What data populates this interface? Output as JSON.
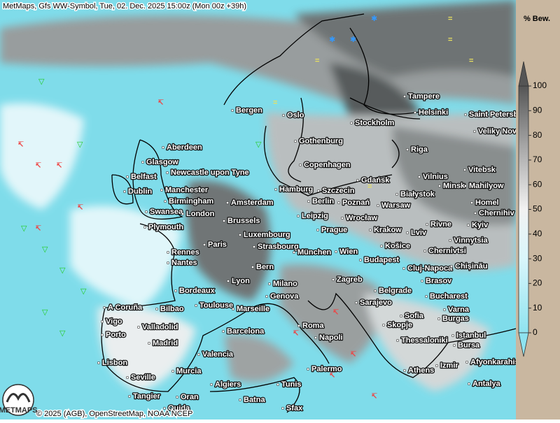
{
  "header": {
    "title": "MetMaps, Gfs WW-Symbol, Tue, 02. Dec. 2025 15:00z (Mon 00z +39h)"
  },
  "footer": {
    "copyright": "© 2025 (AGB), OpenStreetMap, NOAA NCEP"
  },
  "logo": {
    "text": "METMAPS"
  },
  "legend": {
    "title": "% Bew.",
    "lim": [
      0,
      100
    ],
    "ticks": [
      0,
      10,
      20,
      30,
      40,
      50,
      60,
      70,
      80,
      90,
      100
    ]
  },
  "cities": [
    "Tampere",
    "Helsinki",
    "Saint Petersburg",
    "Bergen",
    "Oslo",
    "Stockholm",
    "Veliky Novgorod",
    "Gothenburg",
    "Aberdeen",
    "Riga",
    "Glasgow",
    "Copenhagen",
    "Newcastle upon Tyne",
    "Vitebsk",
    "Belfast",
    "Gdańsk",
    "Vilnius",
    "Dublin",
    "Manchester",
    "Hamburg",
    "Szczecin",
    "Białystok",
    "Minsk",
    "Mahilyow",
    "Birmingham",
    "Amsterdam",
    "Berlin",
    "Poznań",
    "Warsaw",
    "Homel",
    "Swansea",
    "London",
    "Chernihiv",
    "Leipzig",
    "Wrocław",
    "Brussels",
    "Plymouth",
    "Luxembourg",
    "Prague",
    "Krakow",
    "Lviv",
    "Rivne",
    "Kyiv",
    "Paris",
    "Strasbourg",
    "Vinnytsia",
    "Košice",
    "Rennes",
    "München",
    "Wien",
    "Chernivtsi",
    "Nantes",
    "Budapest",
    "Cluj-Napoca",
    "Chișinău",
    "Bern",
    "Brasov",
    "Lyon",
    "Milano",
    "Zagreb",
    "Bordeaux",
    "Belgrade",
    "Genova",
    "Bucharest",
    "Toulouse",
    "Marseille",
    "Sarajevo",
    "A Coruña",
    "Bilbao",
    "Varna",
    "Sofia",
    "Burgas",
    "Vigo",
    "Skopje",
    "Valladolid",
    "Roma",
    "Istanbul",
    "Barcelona",
    "Porto",
    "Napoli",
    "Thessaloniki",
    "Bursa",
    "Madrid",
    "Valencia",
    "Izmir",
    "Afyonkarahisar",
    "Lisbon",
    "Athens",
    "Palermo",
    "Murcia",
    "Seville",
    "Antalya",
    "Algiers",
    "Tunis",
    "Tangier",
    "Oran",
    "Batna",
    "Sfax",
    "Oujda"
  ]
}
